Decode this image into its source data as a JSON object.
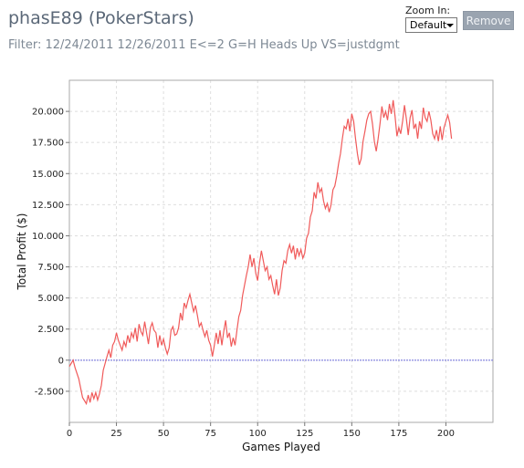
{
  "header": {
    "title": "phasE89 (PokerStars)",
    "filter": "Filter: 12/24/2011 12/26/2011 E<=2 G=H Heads Up VS=justdgmt"
  },
  "controls": {
    "zoom_label": "Zoom In:",
    "zoom_value": "Default",
    "remove_label": "Remove"
  },
  "chart_data": {
    "type": "line",
    "title": "",
    "xlabel": "Games Played",
    "ylabel": "Total Profit ($)",
    "xlim": [
      0,
      225
    ],
    "ylim": [
      -5,
      22.5
    ],
    "x_ticks": [
      0,
      25,
      50,
      75,
      100,
      125,
      150,
      175,
      200
    ],
    "x_tick_labels": [
      "0",
      "25",
      "50",
      "75",
      "100",
      "125",
      "150",
      "175",
      "200"
    ],
    "y_ticks": [
      -2.5,
      0,
      2.5,
      5,
      7.5,
      10,
      12.5,
      15,
      17.5,
      20
    ],
    "y_tick_labels": [
      "-2.500",
      "0",
      "2.500",
      "5.000",
      "7.500",
      "10.000",
      "12.500",
      "15.000",
      "17.500",
      "20.000"
    ],
    "grid": true,
    "line_color": "#f05a5a",
    "zero_line_color": "#6a6ad8",
    "series": [
      {
        "points": [
          [
            0,
            -0.5
          ],
          [
            2,
            0.0
          ],
          [
            3,
            -0.6
          ],
          [
            5,
            -1.5
          ],
          [
            7,
            -3.0
          ],
          [
            9,
            -3.5
          ],
          [
            10,
            -2.8
          ],
          [
            11,
            -3.4
          ],
          [
            12,
            -2.6
          ],
          [
            13,
            -3.1
          ],
          [
            14,
            -2.6
          ],
          [
            15,
            -3.2
          ],
          [
            16,
            -2.7
          ],
          [
            17,
            -2.0
          ],
          [
            18,
            -0.8
          ],
          [
            20,
            0.3
          ],
          [
            21,
            0.8
          ],
          [
            22,
            0.2
          ],
          [
            23,
            1.2
          ],
          [
            24,
            1.5
          ],
          [
            25,
            2.2
          ],
          [
            26,
            1.6
          ],
          [
            27,
            1.2
          ],
          [
            28,
            0.8
          ],
          [
            29,
            1.5
          ],
          [
            30,
            1.1
          ],
          [
            31,
            2.0
          ],
          [
            32,
            1.4
          ],
          [
            33,
            2.2
          ],
          [
            34,
            1.8
          ],
          [
            35,
            2.6
          ],
          [
            36,
            1.5
          ],
          [
            37,
            2.9
          ],
          [
            38,
            2.3
          ],
          [
            39,
            2.0
          ],
          [
            40,
            3.1
          ],
          [
            41,
            2.2
          ],
          [
            42,
            1.3
          ],
          [
            43,
            2.6
          ],
          [
            44,
            3.0
          ],
          [
            45,
            2.4
          ],
          [
            46,
            2.2
          ],
          [
            47,
            1.0
          ],
          [
            48,
            2.0
          ],
          [
            49,
            1.2
          ],
          [
            50,
            1.7
          ],
          [
            51,
            1.0
          ],
          [
            52,
            0.5
          ],
          [
            53,
            1.0
          ],
          [
            54,
            2.4
          ],
          [
            55,
            2.7
          ],
          [
            56,
            2.0
          ],
          [
            57,
            2.1
          ],
          [
            58,
            2.6
          ],
          [
            59,
            3.8
          ],
          [
            60,
            3.2
          ],
          [
            61,
            4.6
          ],
          [
            62,
            4.2
          ],
          [
            63,
            4.8
          ],
          [
            64,
            5.3
          ],
          [
            65,
            4.6
          ],
          [
            66,
            3.9
          ],
          [
            67,
            4.4
          ],
          [
            68,
            3.6
          ],
          [
            69,
            2.7
          ],
          [
            70,
            3.0
          ],
          [
            71,
            2.4
          ],
          [
            72,
            1.9
          ],
          [
            73,
            2.4
          ],
          [
            74,
            1.6
          ],
          [
            75,
            1.2
          ],
          [
            76,
            0.3
          ],
          [
            77,
            1.2
          ],
          [
            78,
            2.2
          ],
          [
            79,
            1.3
          ],
          [
            80,
            2.4
          ],
          [
            81,
            1.2
          ],
          [
            82,
            2.3
          ],
          [
            83,
            3.2
          ],
          [
            84,
            1.8
          ],
          [
            85,
            2.2
          ],
          [
            86,
            1.1
          ],
          [
            87,
            1.8
          ],
          [
            88,
            1.2
          ],
          [
            89,
            2.4
          ],
          [
            90,
            3.5
          ],
          [
            91,
            4.0
          ],
          [
            92,
            5.2
          ],
          [
            93,
            6.0
          ],
          [
            94,
            6.8
          ],
          [
            95,
            7.5
          ],
          [
            96,
            8.5
          ],
          [
            97,
            7.5
          ],
          [
            98,
            8.2
          ],
          [
            99,
            7.0
          ],
          [
            100,
            6.4
          ],
          [
            101,
            7.8
          ],
          [
            102,
            8.8
          ],
          [
            103,
            8.0
          ],
          [
            104,
            7.2
          ],
          [
            105,
            7.5
          ],
          [
            106,
            6.5
          ],
          [
            107,
            6.8
          ],
          [
            108,
            6.0
          ],
          [
            109,
            5.3
          ],
          [
            110,
            6.5
          ],
          [
            111,
            5.2
          ],
          [
            112,
            5.8
          ],
          [
            113,
            7.2
          ],
          [
            114,
            8.0
          ],
          [
            115,
            7.8
          ],
          [
            116,
            8.8
          ],
          [
            117,
            9.3
          ],
          [
            118,
            8.6
          ],
          [
            119,
            9.2
          ],
          [
            120,
            8.1
          ],
          [
            121,
            9.0
          ],
          [
            122,
            8.4
          ],
          [
            123,
            8.9
          ],
          [
            124,
            8.2
          ],
          [
            125,
            8.6
          ],
          [
            126,
            9.8
          ],
          [
            127,
            10.2
          ],
          [
            128,
            11.5
          ],
          [
            129,
            12.0
          ],
          [
            130,
            13.5
          ],
          [
            131,
            13.0
          ],
          [
            132,
            14.3
          ],
          [
            133,
            13.5
          ],
          [
            134,
            13.8
          ],
          [
            135,
            12.8
          ],
          [
            136,
            12.2
          ],
          [
            137,
            12.6
          ],
          [
            138,
            11.9
          ],
          [
            139,
            12.5
          ],
          [
            140,
            13.7
          ],
          [
            141,
            14.0
          ],
          [
            142,
            14.8
          ],
          [
            143,
            15.8
          ],
          [
            144,
            16.6
          ],
          [
            145,
            17.8
          ],
          [
            146,
            18.8
          ],
          [
            147,
            18.6
          ],
          [
            148,
            19.4
          ],
          [
            149,
            18.4
          ],
          [
            150,
            19.8
          ],
          [
            151,
            19.2
          ],
          [
            152,
            17.8
          ],
          [
            153,
            16.6
          ],
          [
            154,
            15.7
          ],
          [
            155,
            16.2
          ],
          [
            156,
            17.6
          ],
          [
            157,
            18.4
          ],
          [
            158,
            19.3
          ],
          [
            159,
            19.8
          ],
          [
            160,
            20.0
          ],
          [
            161,
            19.0
          ],
          [
            162,
            17.6
          ],
          [
            163,
            16.8
          ],
          [
            164,
            17.8
          ],
          [
            165,
            19.0
          ],
          [
            166,
            20.4
          ],
          [
            167,
            19.5
          ],
          [
            168,
            20.0
          ],
          [
            169,
            19.3
          ],
          [
            170,
            20.6
          ],
          [
            171,
            19.8
          ],
          [
            172,
            20.9
          ],
          [
            173,
            19.6
          ],
          [
            174,
            18.0
          ],
          [
            175,
            18.7
          ],
          [
            176,
            18.2
          ],
          [
            177,
            19.2
          ],
          [
            178,
            20.5
          ],
          [
            179,
            19.4
          ],
          [
            180,
            18.1
          ],
          [
            181,
            19.5
          ],
          [
            182,
            20.1
          ],
          [
            183,
            18.6
          ],
          [
            184,
            19.0
          ],
          [
            185,
            17.8
          ],
          [
            186,
            19.2
          ],
          [
            187,
            18.6
          ],
          [
            188,
            20.3
          ],
          [
            189,
            19.5
          ],
          [
            190,
            19.2
          ],
          [
            191,
            20.0
          ],
          [
            192,
            19.3
          ],
          [
            193,
            18.2
          ],
          [
            194,
            17.8
          ],
          [
            195,
            18.5
          ],
          [
            196,
            17.6
          ],
          [
            197,
            18.8
          ],
          [
            198,
            17.7
          ],
          [
            199,
            18.7
          ],
          [
            200,
            19.2
          ],
          [
            201,
            19.7
          ],
          [
            202,
            19.1
          ],
          [
            203,
            17.8
          ]
        ]
      }
    ]
  }
}
